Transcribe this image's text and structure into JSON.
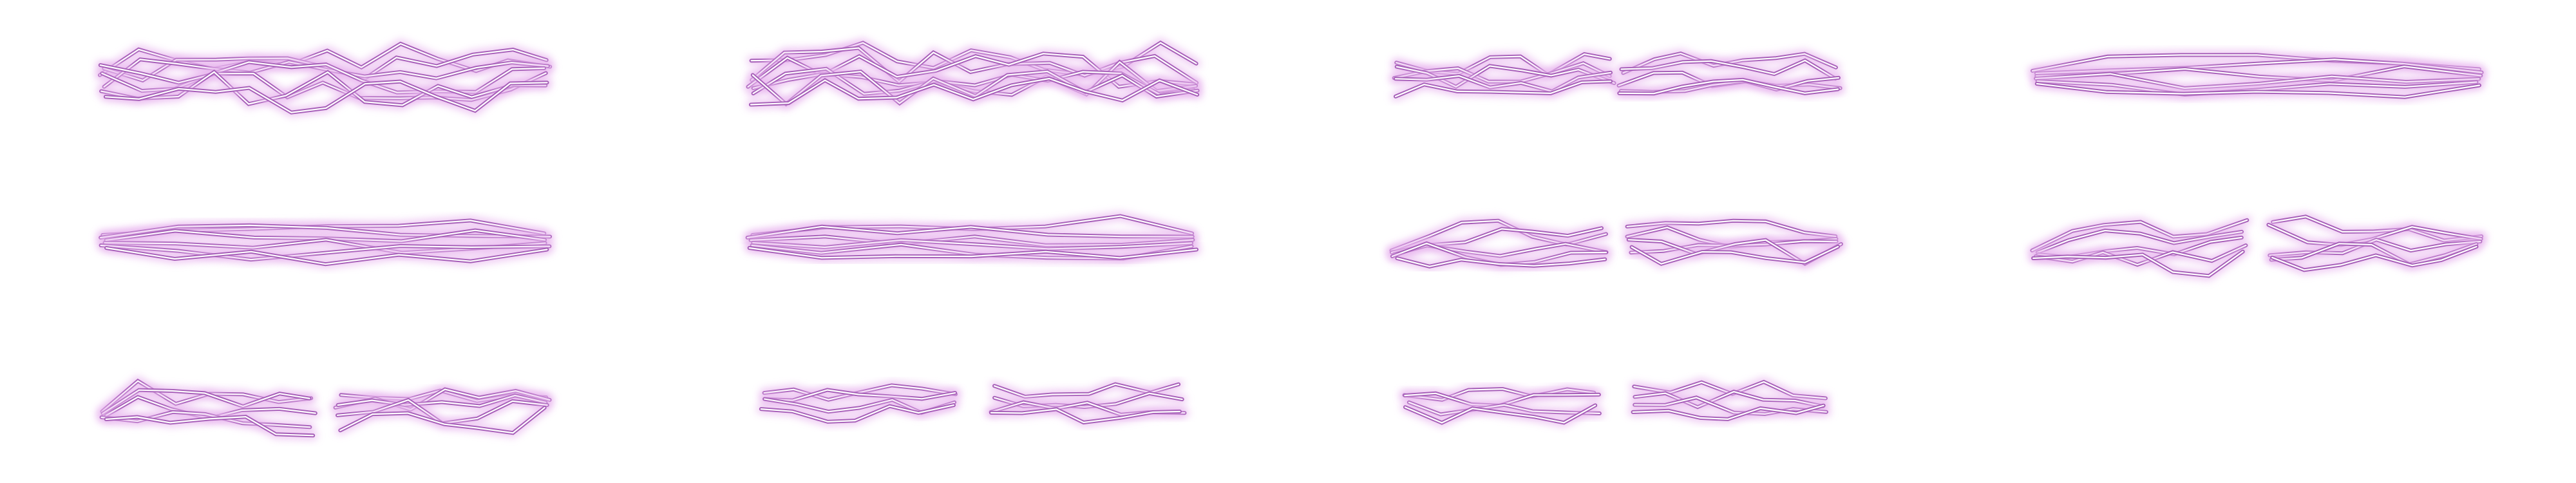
{
  "sprite_sheet": {
    "description_visible": "",
    "rows": 3,
    "columns": 4,
    "frame_count": 11,
    "colors": {
      "background": "#ffffff",
      "glow": "#e9b8ef",
      "outline": "#a55db7",
      "core": "#ffffff"
    },
    "frames": [
      {
        "id": 1,
        "style": "dense-crackle"
      },
      {
        "id": 2,
        "style": "dense-crackle"
      },
      {
        "id": 3,
        "style": "split-crackle"
      },
      {
        "id": 4,
        "style": "streak-converge"
      },
      {
        "id": 5,
        "style": "streak-converge"
      },
      {
        "id": 6,
        "style": "streak-converge"
      },
      {
        "id": 7,
        "style": "split-burst"
      },
      {
        "id": 8,
        "style": "split-burst"
      },
      {
        "id": 9,
        "style": "split-burst"
      },
      {
        "id": 10,
        "style": "split-fade"
      },
      {
        "id": 11,
        "style": "split-fade"
      }
    ]
  }
}
